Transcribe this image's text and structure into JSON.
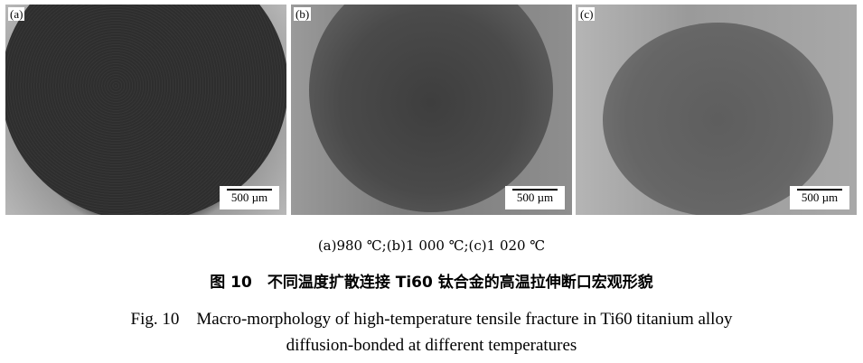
{
  "panels": [
    {
      "label": "(a)",
      "scale_bar": "500 µm"
    },
    {
      "label": "(b)",
      "scale_bar": "500 µm"
    },
    {
      "label": "(c)",
      "scale_bar": "500 µm"
    }
  ],
  "caption": {
    "subcaption": "(a)980 ℃;(b)1 000 ℃;(c)1 020 ℃",
    "title_cn": "图 10　不同温度扩散连接 Ti60 钛合金的高温拉伸断口宏观形貌",
    "title_en_line1": "Fig. 10　Macro-morphology of high-temperature tensile fracture in Ti60 titanium alloy",
    "title_en_line2": "diffusion-bonded at different temperatures"
  }
}
